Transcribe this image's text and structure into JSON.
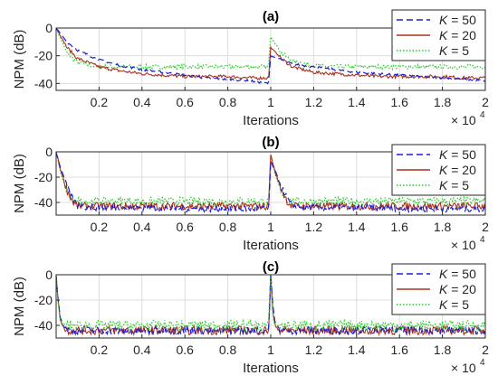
{
  "figure": {
    "ylabel": "NPM (dB)",
    "xlabel": "Iterations",
    "x_multiplier_base": "× 10",
    "x_multiplier_exp": "4",
    "x_ticks": [
      "0.2",
      "0.4",
      "0.6",
      "0.8",
      "1",
      "1.2",
      "1.4",
      "1.6",
      "1.8",
      "2"
    ]
  },
  "legend": {
    "entries": [
      {
        "k": "K",
        "eq": " = 50",
        "color": "#1f1fd0",
        "dash": "8,5"
      },
      {
        "k": "K",
        "eq": " = 20",
        "color": "#a8321e",
        "dash": ""
      },
      {
        "k": "K",
        "eq": " = 5",
        "color": "#22cc22",
        "dash": "2,3"
      }
    ]
  },
  "chart_data": [
    {
      "type": "line",
      "title": "(a)",
      "xlabel": "Iterations",
      "ylabel": "NPM (dB)",
      "x_scale": "× 10^4",
      "xlim": [
        0,
        2
      ],
      "ylim": [
        -45,
        0
      ],
      "yticks": [
        0,
        -20,
        -40
      ],
      "grid": true,
      "legend_position": "top-right",
      "series": [
        {
          "name": "K = 50",
          "color": "#1f1fd0",
          "style": "dashed",
          "x": [
            0,
            0.05,
            0.1,
            0.2,
            0.3,
            0.4,
            0.5,
            0.6,
            0.7,
            0.8,
            0.9,
            0.99,
            1.0,
            1.05,
            1.1,
            1.2,
            1.3,
            1.4,
            1.5,
            1.6,
            1.7,
            1.8,
            1.9,
            2.0
          ],
          "y": [
            0,
            -10,
            -16,
            -23,
            -27,
            -30,
            -32,
            -34,
            -36,
            -37,
            -38,
            -40,
            -20,
            -23,
            -26,
            -28,
            -30,
            -32,
            -33,
            -34,
            -35,
            -36,
            -37,
            -38
          ]
        },
        {
          "name": "K = 20",
          "color": "#a8321e",
          "style": "solid",
          "x": [
            0,
            0.05,
            0.1,
            0.2,
            0.3,
            0.4,
            0.5,
            0.6,
            0.7,
            0.8,
            0.9,
            0.99,
            1.0,
            1.05,
            1.1,
            1.2,
            1.3,
            1.4,
            1.5,
            1.6,
            1.7,
            1.8,
            1.9,
            2.0
          ],
          "y": [
            0,
            -14,
            -22,
            -28,
            -31,
            -33,
            -34,
            -35,
            -35,
            -35,
            -36,
            -36,
            -14,
            -22,
            -28,
            -32,
            -33,
            -34,
            -35,
            -35,
            -35,
            -35,
            -36,
            -36
          ]
        },
        {
          "name": "K = 5",
          "color": "#22cc22",
          "style": "dotted",
          "x": [
            0,
            0.05,
            0.1,
            0.2,
            0.3,
            0.4,
            0.5,
            0.6,
            0.7,
            0.8,
            0.9,
            0.99,
            1.0,
            1.05,
            1.1,
            1.2,
            1.3,
            1.4,
            1.5,
            1.6,
            1.7,
            1.8,
            1.9,
            2.0
          ],
          "y": [
            0,
            -18,
            -25,
            -28,
            -28,
            -28,
            -28,
            -28,
            -28,
            -28,
            -28,
            -28,
            -6,
            -18,
            -24,
            -27,
            -28,
            -28,
            -28,
            -28,
            -28,
            -28,
            -28,
            -28
          ]
        }
      ]
    },
    {
      "type": "line",
      "title": "(b)",
      "xlabel": "Iterations",
      "ylabel": "NPM (dB)",
      "x_scale": "× 10^4",
      "xlim": [
        0,
        2
      ],
      "ylim": [
        -50,
        0
      ],
      "yticks": [
        0,
        -20,
        -40
      ],
      "grid": true,
      "legend_position": "top-right",
      "series": [
        {
          "name": "K = 50",
          "color": "#1f1fd0",
          "style": "dashed",
          "x": [
            0,
            0.02,
            0.05,
            0.08,
            0.1,
            0.15,
            0.2,
            0.4,
            0.6,
            0.8,
            0.99,
            1.0,
            1.02,
            1.05,
            1.08,
            1.1,
            1.15,
            1.2,
            1.4,
            1.6,
            1.8,
            2.0
          ],
          "y": [
            0,
            -12,
            -28,
            -38,
            -42,
            -44,
            -44,
            -44,
            -45,
            -45,
            -45,
            -8,
            -15,
            -28,
            -38,
            -42,
            -44,
            -44,
            -44,
            -45,
            -45,
            -45
          ]
        },
        {
          "name": "K = 20",
          "color": "#a8321e",
          "style": "solid",
          "x": [
            0,
            0.02,
            0.05,
            0.08,
            0.1,
            0.15,
            0.2,
            0.4,
            0.6,
            0.8,
            0.99,
            1.0,
            1.02,
            1.05,
            1.08,
            1.1,
            1.15,
            1.2,
            1.4,
            1.6,
            1.8,
            2.0
          ],
          "y": [
            0,
            -14,
            -30,
            -40,
            -43,
            -43,
            -43,
            -43,
            -43,
            -43,
            -43,
            -2,
            -16,
            -30,
            -40,
            -43,
            -43,
            -43,
            -43,
            -43,
            -43,
            -43
          ]
        },
        {
          "name": "K = 5",
          "color": "#22cc22",
          "style": "dotted",
          "x": [
            0,
            0.02,
            0.05,
            0.08,
            0.1,
            0.15,
            0.2,
            0.4,
            0.6,
            0.8,
            0.99,
            1.0,
            1.02,
            1.05,
            1.08,
            1.1,
            1.15,
            1.2,
            1.4,
            1.6,
            1.8,
            2.0
          ],
          "y": [
            0,
            -16,
            -32,
            -38,
            -39,
            -39,
            -39,
            -39,
            -39,
            -39,
            -39,
            -3,
            -18,
            -32,
            -38,
            -39,
            -39,
            -39,
            -39,
            -39,
            -39,
            -39
          ]
        }
      ]
    },
    {
      "type": "line",
      "title": "(c)",
      "xlabel": "Iterations",
      "ylabel": "NPM (dB)",
      "x_scale": "× 10^4",
      "xlim": [
        0,
        2
      ],
      "ylim": [
        -50,
        0
      ],
      "yticks": [
        0,
        -20,
        -40
      ],
      "grid": true,
      "legend_position": "top-right",
      "series": [
        {
          "name": "K = 50",
          "color": "#1f1fd0",
          "style": "dashed",
          "x": [
            0,
            0.01,
            0.02,
            0.04,
            0.06,
            0.1,
            0.4,
            0.7,
            0.99,
            1.0,
            1.005,
            1.01,
            1.02,
            1.04,
            1.06,
            1.1,
            1.4,
            1.7,
            2.0
          ],
          "y": [
            0,
            -20,
            -35,
            -42,
            -44,
            -44,
            -44,
            -44,
            -44,
            0,
            -10,
            -25,
            -38,
            -43,
            -44,
            -44,
            -44,
            -44,
            -44
          ]
        },
        {
          "name": "K = 20",
          "color": "#a8321e",
          "style": "solid",
          "x": [
            0,
            0.01,
            0.02,
            0.04,
            0.06,
            0.1,
            0.4,
            0.7,
            0.99,
            1.0,
            1.005,
            1.01,
            1.02,
            1.04,
            1.06,
            1.1,
            1.4,
            1.7,
            2.0
          ],
          "y": [
            0,
            -22,
            -36,
            -43,
            -44,
            -44,
            -44,
            -44,
            -44,
            0,
            -14,
            -30,
            -40,
            -44,
            -44,
            -44,
            -44,
            -44,
            -44
          ]
        },
        {
          "name": "K = 5",
          "color": "#22cc22",
          "style": "dotted",
          "x": [
            0,
            0.01,
            0.02,
            0.04,
            0.06,
            0.1,
            0.4,
            0.7,
            0.99,
            1.0,
            1.005,
            1.01,
            1.02,
            1.04,
            1.06,
            1.1,
            1.4,
            1.7,
            2.0
          ],
          "y": [
            0,
            -25,
            -36,
            -40,
            -40,
            -40,
            -40,
            -40,
            -40,
            0,
            -18,
            -33,
            -40,
            -40,
            -40,
            -40,
            -40,
            -40,
            -40
          ]
        }
      ]
    }
  ]
}
